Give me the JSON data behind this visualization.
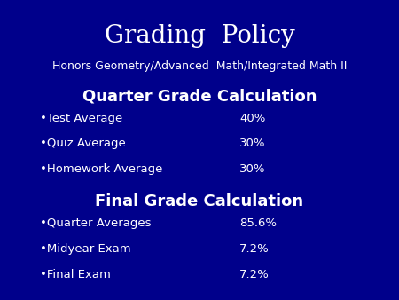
{
  "bg_color": "#00008B",
  "text_color": "#FFFFFF",
  "title": "Grading  Policy",
  "subtitle": "Honors Geometry/Advanced  Math/Integrated Math II",
  "section1_header": "Quarter Grade Calculation",
  "section1_items": [
    [
      "Test Average",
      "40%"
    ],
    [
      "Quiz Average",
      "30%"
    ],
    [
      "Homework Average",
      "30%"
    ]
  ],
  "section2_header": "Final Grade Calculation",
  "section2_items": [
    [
      "Quarter Averages",
      "85.6%"
    ],
    [
      "Midyear Exam",
      "7.2%"
    ],
    [
      "Final Exam",
      "7.2%"
    ]
  ],
  "title_fontsize": 20,
  "subtitle_fontsize": 9,
  "section_header_fontsize": 13,
  "item_fontsize": 9.5,
  "bullet": "•"
}
